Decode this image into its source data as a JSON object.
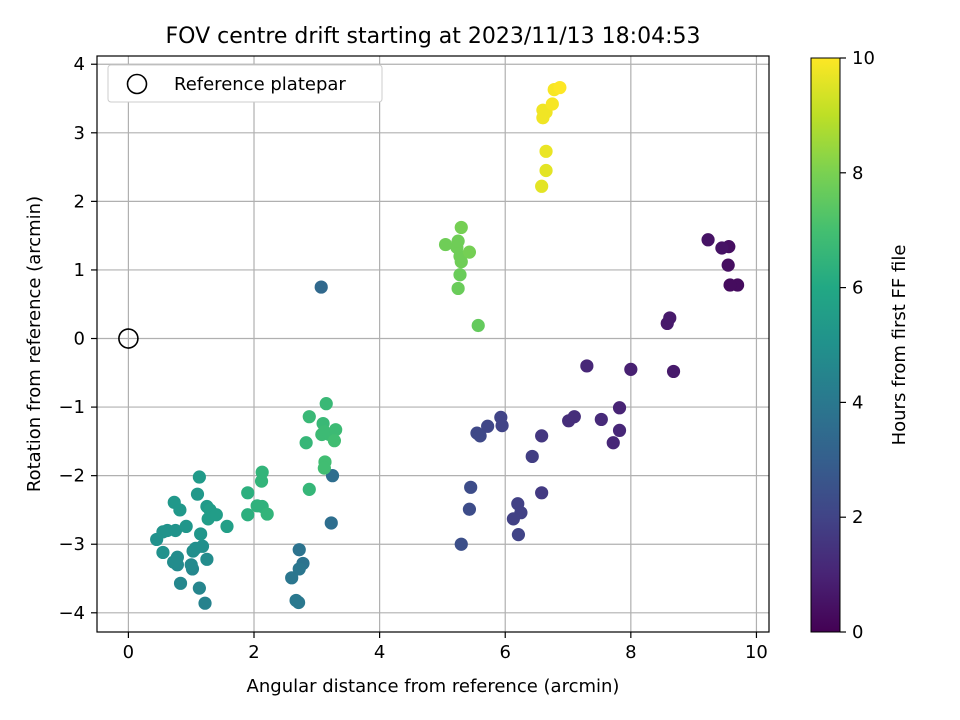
{
  "chart_data": {
    "type": "scatter",
    "title": "FOV centre drift starting at 2023/11/13 18:04:53",
    "xlabel": "Angular distance from reference (arcmin)",
    "ylabel": "Rotation from reference (arcmin)",
    "xlim": [
      -0.5,
      10.2
    ],
    "ylim": [
      -4.28,
      4.12
    ],
    "xticks": [
      0,
      2,
      4,
      6,
      8,
      10
    ],
    "yticks": [
      -4,
      -3,
      -2,
      -1,
      0,
      1,
      2,
      3,
      4
    ],
    "grid": true,
    "legend": {
      "position": "top-left",
      "entries": [
        "Reference platepar"
      ]
    },
    "reference_point": {
      "x": 0,
      "y": 0
    },
    "colorbar": {
      "label": "Hours from first FF file",
      "range": [
        0,
        10
      ],
      "ticks": [
        0,
        2,
        4,
        6,
        8,
        10
      ],
      "colormap": "viridis"
    },
    "points": [
      {
        "x": 9.7,
        "y": 0.78,
        "c": 0.3
      },
      {
        "x": 9.58,
        "y": 0.78,
        "c": 0.3
      },
      {
        "x": 9.55,
        "y": 1.07,
        "c": 0.4
      },
      {
        "x": 9.56,
        "y": 1.34,
        "c": 0.4
      },
      {
        "x": 9.45,
        "y": 1.32,
        "c": 0.5
      },
      {
        "x": 9.23,
        "y": 1.44,
        "c": 0.5
      },
      {
        "x": 8.58,
        "y": 0.22,
        "c": 0.7
      },
      {
        "x": 8.62,
        "y": 0.3,
        "c": 0.7
      },
      {
        "x": 8.68,
        "y": -0.48,
        "c": 0.7
      },
      {
        "x": 8.0,
        "y": -0.45,
        "c": 0.9
      },
      {
        "x": 7.3,
        "y": -0.4,
        "c": 1.1
      },
      {
        "x": 7.82,
        "y": -1.01,
        "c": 1.0
      },
      {
        "x": 7.82,
        "y": -1.34,
        "c": 1.1
      },
      {
        "x": 7.72,
        "y": -1.52,
        "c": 1.1
      },
      {
        "x": 7.53,
        "y": -1.18,
        "c": 1.2
      },
      {
        "x": 7.1,
        "y": -1.14,
        "c": 1.3
      },
      {
        "x": 7.01,
        "y": -1.2,
        "c": 1.3
      },
      {
        "x": 6.58,
        "y": -1.42,
        "c": 1.6
      },
      {
        "x": 6.58,
        "y": -2.25,
        "c": 1.7
      },
      {
        "x": 6.43,
        "y": -1.72,
        "c": 1.8
      },
      {
        "x": 6.2,
        "y": -2.41,
        "c": 1.9
      },
      {
        "x": 6.25,
        "y": -2.54,
        "c": 1.9
      },
      {
        "x": 6.13,
        "y": -2.63,
        "c": 1.9
      },
      {
        "x": 6.21,
        "y": -2.86,
        "c": 2.0
      },
      {
        "x": 5.93,
        "y": -1.15,
        "c": 2.0
      },
      {
        "x": 5.95,
        "y": -1.27,
        "c": 2.0
      },
      {
        "x": 5.72,
        "y": -1.28,
        "c": 2.1
      },
      {
        "x": 5.55,
        "y": -1.38,
        "c": 2.2
      },
      {
        "x": 5.6,
        "y": -1.42,
        "c": 2.2
      },
      {
        "x": 5.45,
        "y": -2.17,
        "c": 2.3
      },
      {
        "x": 5.43,
        "y": -2.49,
        "c": 2.3
      },
      {
        "x": 5.3,
        "y": -3.0,
        "c": 2.4
      },
      {
        "x": 3.07,
        "y": 0.75,
        "c": 3.4
      },
      {
        "x": 3.25,
        "y": -2.0,
        "c": 3.6
      },
      {
        "x": 3.23,
        "y": -2.69,
        "c": 3.6
      },
      {
        "x": 2.72,
        "y": -3.08,
        "c": 3.8
      },
      {
        "x": 2.78,
        "y": -3.28,
        "c": 3.8
      },
      {
        "x": 2.72,
        "y": -3.36,
        "c": 3.9
      },
      {
        "x": 2.6,
        "y": -3.49,
        "c": 3.9
      },
      {
        "x": 2.67,
        "y": -3.82,
        "c": 4.0
      },
      {
        "x": 2.71,
        "y": -3.85,
        "c": 4.0
      },
      {
        "x": 1.22,
        "y": -3.86,
        "c": 4.4
      },
      {
        "x": 1.13,
        "y": -3.64,
        "c": 4.5
      },
      {
        "x": 0.83,
        "y": -3.57,
        "c": 4.6
      },
      {
        "x": 1.02,
        "y": -3.36,
        "c": 4.6
      },
      {
        "x": 1.0,
        "y": -3.3,
        "c": 4.7
      },
      {
        "x": 0.78,
        "y": -3.3,
        "c": 4.7
      },
      {
        "x": 0.72,
        "y": -3.26,
        "c": 4.8
      },
      {
        "x": 0.78,
        "y": -3.19,
        "c": 4.8
      },
      {
        "x": 1.25,
        "y": -3.22,
        "c": 4.8
      },
      {
        "x": 1.03,
        "y": -3.1,
        "c": 4.9
      },
      {
        "x": 1.07,
        "y": -3.06,
        "c": 4.9
      },
      {
        "x": 1.18,
        "y": -3.03,
        "c": 4.9
      },
      {
        "x": 0.55,
        "y": -3.12,
        "c": 5.0
      },
      {
        "x": 0.45,
        "y": -2.93,
        "c": 5.0
      },
      {
        "x": 0.55,
        "y": -2.82,
        "c": 5.1
      },
      {
        "x": 0.62,
        "y": -2.8,
        "c": 5.1
      },
      {
        "x": 0.75,
        "y": -2.8,
        "c": 5.1
      },
      {
        "x": 0.92,
        "y": -2.74,
        "c": 5.2
      },
      {
        "x": 1.15,
        "y": -2.85,
        "c": 5.2
      },
      {
        "x": 0.73,
        "y": -2.39,
        "c": 5.3
      },
      {
        "x": 0.82,
        "y": -2.5,
        "c": 5.3
      },
      {
        "x": 1.1,
        "y": -2.27,
        "c": 5.3
      },
      {
        "x": 1.13,
        "y": -2.02,
        "c": 5.4
      },
      {
        "x": 1.25,
        "y": -2.45,
        "c": 5.4
      },
      {
        "x": 1.3,
        "y": -2.5,
        "c": 5.5
      },
      {
        "x": 1.27,
        "y": -2.63,
        "c": 5.5
      },
      {
        "x": 1.4,
        "y": -2.57,
        "c": 5.5
      },
      {
        "x": 1.57,
        "y": -2.74,
        "c": 5.6
      },
      {
        "x": 1.9,
        "y": -2.57,
        "c": 6.3
      },
      {
        "x": 1.9,
        "y": -2.25,
        "c": 6.3
      },
      {
        "x": 2.05,
        "y": -2.44,
        "c": 6.4
      },
      {
        "x": 2.13,
        "y": -2.45,
        "c": 6.4
      },
      {
        "x": 2.21,
        "y": -2.56,
        "c": 6.5
      },
      {
        "x": 2.12,
        "y": -2.08,
        "c": 6.5
      },
      {
        "x": 2.13,
        "y": -1.95,
        "c": 6.5
      },
      {
        "x": 2.83,
        "y": -1.52,
        "c": 6.6
      },
      {
        "x": 2.88,
        "y": -2.2,
        "c": 6.6
      },
      {
        "x": 2.88,
        "y": -1.14,
        "c": 6.7
      },
      {
        "x": 3.15,
        "y": -0.95,
        "c": 6.7
      },
      {
        "x": 3.1,
        "y": -1.24,
        "c": 6.7
      },
      {
        "x": 3.12,
        "y": -1.36,
        "c": 6.8
      },
      {
        "x": 3.08,
        "y": -1.4,
        "c": 6.8
      },
      {
        "x": 3.2,
        "y": -1.4,
        "c": 6.8
      },
      {
        "x": 3.3,
        "y": -1.33,
        "c": 6.8
      },
      {
        "x": 3.28,
        "y": -1.49,
        "c": 6.9
      },
      {
        "x": 3.13,
        "y": -1.8,
        "c": 6.9
      },
      {
        "x": 3.12,
        "y": -1.89,
        "c": 6.9
      },
      {
        "x": 5.57,
        "y": 0.19,
        "c": 7.6
      },
      {
        "x": 5.25,
        "y": 0.73,
        "c": 7.7
      },
      {
        "x": 5.28,
        "y": 0.93,
        "c": 7.7
      },
      {
        "x": 5.3,
        "y": 1.12,
        "c": 7.8
      },
      {
        "x": 5.28,
        "y": 1.2,
        "c": 7.8
      },
      {
        "x": 5.05,
        "y": 1.37,
        "c": 7.8
      },
      {
        "x": 5.23,
        "y": 1.33,
        "c": 7.8
      },
      {
        "x": 5.25,
        "y": 1.42,
        "c": 7.8
      },
      {
        "x": 5.3,
        "y": 1.62,
        "c": 7.9
      },
      {
        "x": 5.43,
        "y": 1.26,
        "c": 7.9
      },
      {
        "x": 6.58,
        "y": 2.22,
        "c": 9.6
      },
      {
        "x": 6.65,
        "y": 2.45,
        "c": 9.6
      },
      {
        "x": 6.65,
        "y": 2.73,
        "c": 9.7
      },
      {
        "x": 6.6,
        "y": 3.22,
        "c": 9.8
      },
      {
        "x": 6.6,
        "y": 3.33,
        "c": 9.8
      },
      {
        "x": 6.65,
        "y": 3.3,
        "c": 9.8
      },
      {
        "x": 6.75,
        "y": 3.42,
        "c": 9.9
      },
      {
        "x": 6.78,
        "y": 3.63,
        "c": 9.9
      },
      {
        "x": 6.87,
        "y": 3.66,
        "c": 10.0
      }
    ]
  }
}
